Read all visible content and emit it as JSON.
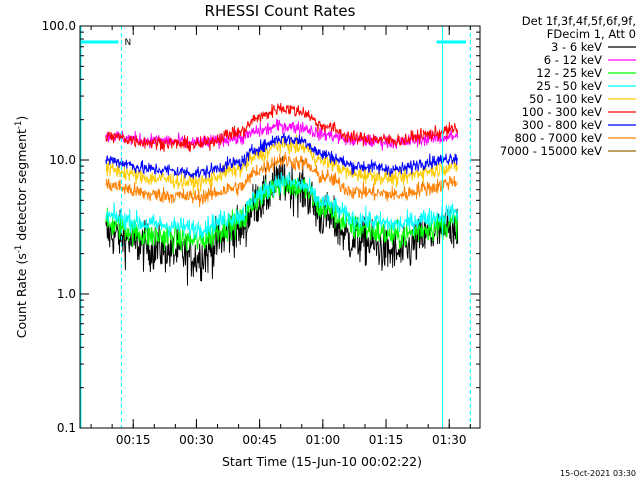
{
  "chart_data": {
    "type": "line",
    "title": "RHESSI Count Rates",
    "xlabel": "Start Time (15-Jun-10 00:02:22)",
    "ylabel": "Count Rate (s",
    "ylabel_sup1": "-1",
    "ylabel_mid": " detector segment",
    "ylabel_sup2": "-1",
    "ylabel_end": ")",
    "yscale": "log",
    "ylim": [
      0.1,
      100.0
    ],
    "y_ticks": [
      "0.1",
      "1.0",
      "10.0",
      "100.0"
    ],
    "xlim_minutes": [
      2.37,
      97.3
    ],
    "x_ticks": [
      {
        "label": "00:15",
        "minute": 15
      },
      {
        "label": "00:30",
        "minute": 30
      },
      {
        "label": "00:45",
        "minute": 45
      },
      {
        "label": "01:00",
        "minute": 60
      },
      {
        "label": "01:15",
        "minute": 75
      },
      {
        "label": "01:30",
        "minute": 90
      }
    ],
    "data_range_minutes": [
      8.5,
      92.0
    ],
    "x_knots_minutes": [
      8.5,
      20,
      30,
      40,
      45,
      50,
      55,
      60,
      68,
      78,
      85,
      92
    ],
    "series": [
      {
        "name": "3 - 6 keV",
        "color": "#000000",
        "values": [
          2.8,
          2.2,
          1.9,
          3.0,
          5.0,
          7.0,
          6.0,
          3.8,
          2.5,
          2.0,
          2.7,
          3.3
        ],
        "noise": 0.35
      },
      {
        "name": "6 - 12 keV",
        "color": "#ff00ff",
        "values": [
          15.0,
          14.0,
          13.5,
          14.5,
          16.5,
          18.0,
          17.5,
          15.5,
          14.0,
          13.5,
          14.5,
          15.0
        ],
        "noise": 0.1
      },
      {
        "name": "12 - 25 keV",
        "color": "#00ff00",
        "values": [
          3.3,
          2.7,
          2.5,
          3.4,
          5.3,
          6.8,
          6.2,
          4.3,
          3.1,
          2.7,
          3.1,
          3.4
        ],
        "noise": 0.2
      },
      {
        "name": "25 - 50 keV",
        "color": "#00ffff",
        "values": [
          3.8,
          3.3,
          3.1,
          3.8,
          5.6,
          7.0,
          6.5,
          4.8,
          3.6,
          3.3,
          3.7,
          4.1
        ],
        "noise": 0.15
      },
      {
        "name": "50 - 100 keV",
        "color": "#ffcc00",
        "values": [
          8.5,
          7.3,
          6.8,
          8.5,
          11.0,
          13.0,
          12.5,
          9.8,
          7.8,
          7.3,
          8.3,
          9.0
        ],
        "noise": 0.12
      },
      {
        "name": "100 - 300 keV",
        "color": "#ff0000",
        "values": [
          15.0,
          13.5,
          13.0,
          16.0,
          21.0,
          24.5,
          23.0,
          18.0,
          14.5,
          14.0,
          15.5,
          17.0
        ],
        "noise": 0.1
      },
      {
        "name": "300 - 800 keV",
        "color": "#0000ff",
        "values": [
          10.0,
          8.5,
          8.0,
          9.5,
          12.5,
          14.5,
          14.0,
          11.0,
          9.0,
          8.5,
          9.7,
          10.5
        ],
        "noise": 0.1
      },
      {
        "name": "800 - 7000 keV",
        "color": "#ff8000",
        "values": [
          6.5,
          5.5,
          5.3,
          6.2,
          8.5,
          10.0,
          9.5,
          7.5,
          5.8,
          5.5,
          6.2,
          7.0
        ],
        "noise": 0.12
      },
      {
        "name": "7000 - 15000 keV",
        "color": "#996600",
        "values": [],
        "noise": 0
      }
    ],
    "legend_header": [
      "Det 1f,3f,4f,5f,6f,9f,",
      "FDecim 1, Att 0"
    ],
    "night_flag": {
      "label": "N",
      "color": "#00ffff",
      "bars_minutes": [
        [
          2.37,
          11.5
        ],
        [
          87.0,
          94.0
        ]
      ]
    },
    "cyan_markers_minutes": [
      2.6,
      12.2,
      88.4,
      95.0
    ],
    "timestamp": "15-Oct-2021 03:30"
  }
}
